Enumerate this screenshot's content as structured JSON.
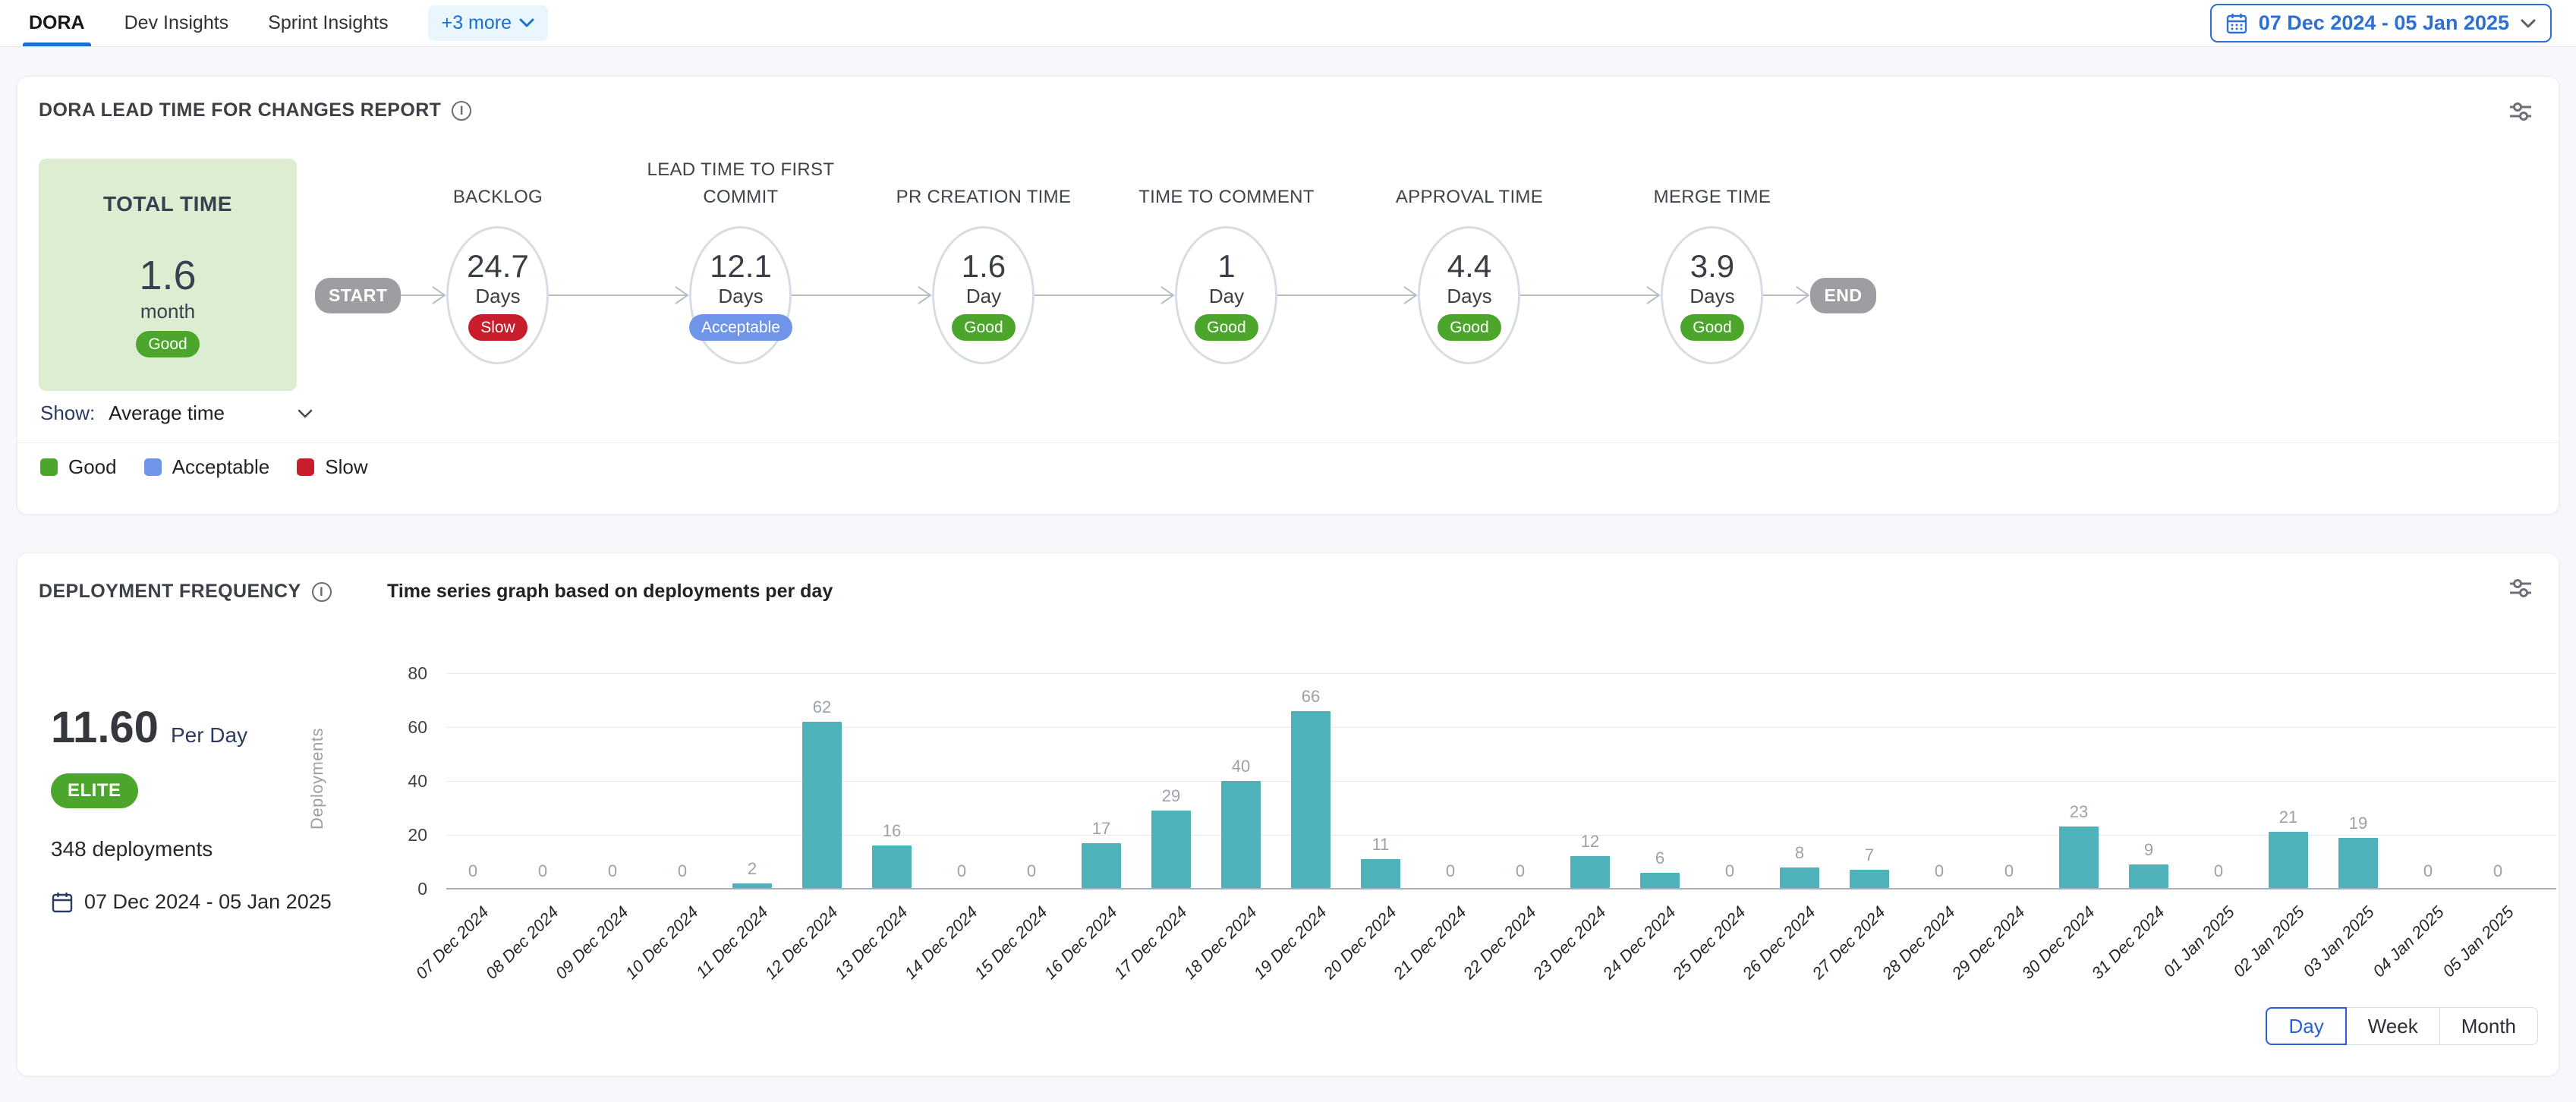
{
  "tabs": {
    "items": [
      {
        "label": "DORA",
        "active": true
      },
      {
        "label": "Dev Insights",
        "active": false
      },
      {
        "label": "Sprint Insights",
        "active": false
      }
    ],
    "more_label": "+3 more"
  },
  "date_range": "07 Dec 2024 - 05 Jan 2025",
  "status_colors": {
    "Good": "#4CA62C",
    "Acceptable": "#6E95E8",
    "Slow": "#C81E2C"
  },
  "colors": {
    "accent_blue": "#1A6FD4",
    "teal_bar": "#4FB2BA",
    "good_green": "#4CA62C",
    "acceptable_blue": "#6E95E8",
    "slow_red": "#C81E2C",
    "total_card_bg": "#DCEDD2",
    "elite_green": "#4CA62C",
    "navy": "#2C3A5E"
  },
  "lead_time_panel": {
    "title": "DORA LEAD TIME FOR CHANGES REPORT",
    "total": {
      "label": "TOTAL TIME",
      "value": "1.6",
      "unit": "month",
      "status": "Good"
    },
    "flow_start_label": "START",
    "flow_end_label": "END",
    "stages": [
      {
        "name": "BACKLOG",
        "value": "24.7",
        "unit": "Days",
        "status": "Slow"
      },
      {
        "name": "LEAD TIME TO FIRST COMMIT",
        "value": "12.1",
        "unit": "Days",
        "status": "Acceptable"
      },
      {
        "name": "PR CREATION TIME",
        "value": "1.6",
        "unit": "Day",
        "status": "Good"
      },
      {
        "name": "TIME TO COMMENT",
        "value": "1",
        "unit": "Day",
        "status": "Good"
      },
      {
        "name": "APPROVAL TIME",
        "value": "4.4",
        "unit": "Days",
        "status": "Good"
      },
      {
        "name": "MERGE TIME",
        "value": "3.9",
        "unit": "Days",
        "status": "Good"
      }
    ],
    "show_label": "Show:",
    "show_value": "Average time",
    "legend": [
      {
        "label": "Good",
        "color": "#4CA62C"
      },
      {
        "label": "Acceptable",
        "color": "#6E95E8"
      },
      {
        "label": "Slow",
        "color": "#C81E2C"
      }
    ]
  },
  "deployment_panel": {
    "title": "DEPLOYMENT FREQUENCY",
    "chart_title": "Time series graph based on deployments per day",
    "rate_value": "11.60",
    "rate_unit": "Per Day",
    "tier_badge": "ELITE",
    "total_deployments": "348 deployments",
    "date_range": "07 Dec 2024 - 05 Jan 2025",
    "granularity": {
      "options": [
        "Day",
        "Week",
        "Month"
      ],
      "selected": "Day"
    }
  },
  "chart_data": {
    "type": "bar",
    "title": "Time series graph based on deployments per day",
    "xlabel": "",
    "ylabel": "Deployments",
    "ylim": [
      0,
      80
    ],
    "yticks": [
      0,
      20,
      40,
      60,
      80
    ],
    "grid": true,
    "legend_position": "none",
    "bar_color": "#4FB2BA",
    "categories": [
      "07 Dec 2024",
      "08 Dec 2024",
      "09 Dec 2024",
      "10 Dec 2024",
      "11 Dec 2024",
      "12 Dec 2024",
      "13 Dec 2024",
      "14 Dec 2024",
      "15 Dec 2024",
      "16 Dec 2024",
      "17 Dec 2024",
      "18 Dec 2024",
      "19 Dec 2024",
      "20 Dec 2024",
      "21 Dec 2024",
      "22 Dec 2024",
      "23 Dec 2024",
      "24 Dec 2024",
      "25 Dec 2024",
      "26 Dec 2024",
      "27 Dec 2024",
      "28 Dec 2024",
      "29 Dec 2024",
      "30 Dec 2024",
      "31 Dec 2024",
      "01 Jan 2025",
      "02 Jan 2025",
      "03 Jan 2025",
      "04 Jan 2025",
      "05 Jan 2025"
    ],
    "values": [
      0,
      0,
      0,
      0,
      2,
      62,
      16,
      0,
      0,
      17,
      29,
      40,
      66,
      11,
      0,
      0,
      12,
      6,
      0,
      8,
      7,
      0,
      0,
      23,
      9,
      0,
      21,
      19,
      0,
      0
    ]
  }
}
